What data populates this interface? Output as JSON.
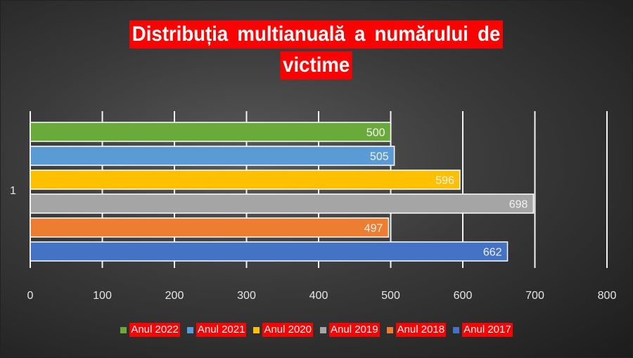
{
  "chart_data": {
    "type": "bar",
    "orientation": "horizontal",
    "title_lines": [
      "Distribuția multianuală a numărului de",
      "victime"
    ],
    "category": "1",
    "xlim": [
      0,
      800
    ],
    "xticks": [
      0,
      100,
      200,
      300,
      400,
      500,
      600,
      700,
      800
    ],
    "grid": true,
    "legend_position": "bottom",
    "series": [
      {
        "name": "Anul 2022",
        "value": 500,
        "color": "#6aaa3a"
      },
      {
        "name": "Anul 2021",
        "value": 505,
        "color": "#5b9bd5"
      },
      {
        "name": "Anul 2020",
        "value": 596,
        "color": "#ffc000"
      },
      {
        "name": "Anul 2019",
        "value": 698,
        "color": "#a5a5a5"
      },
      {
        "name": "Anul 2018",
        "value": 497,
        "color": "#ed7d31"
      },
      {
        "name": "Anul 2017",
        "value": 662,
        "color": "#4472c4"
      }
    ]
  }
}
